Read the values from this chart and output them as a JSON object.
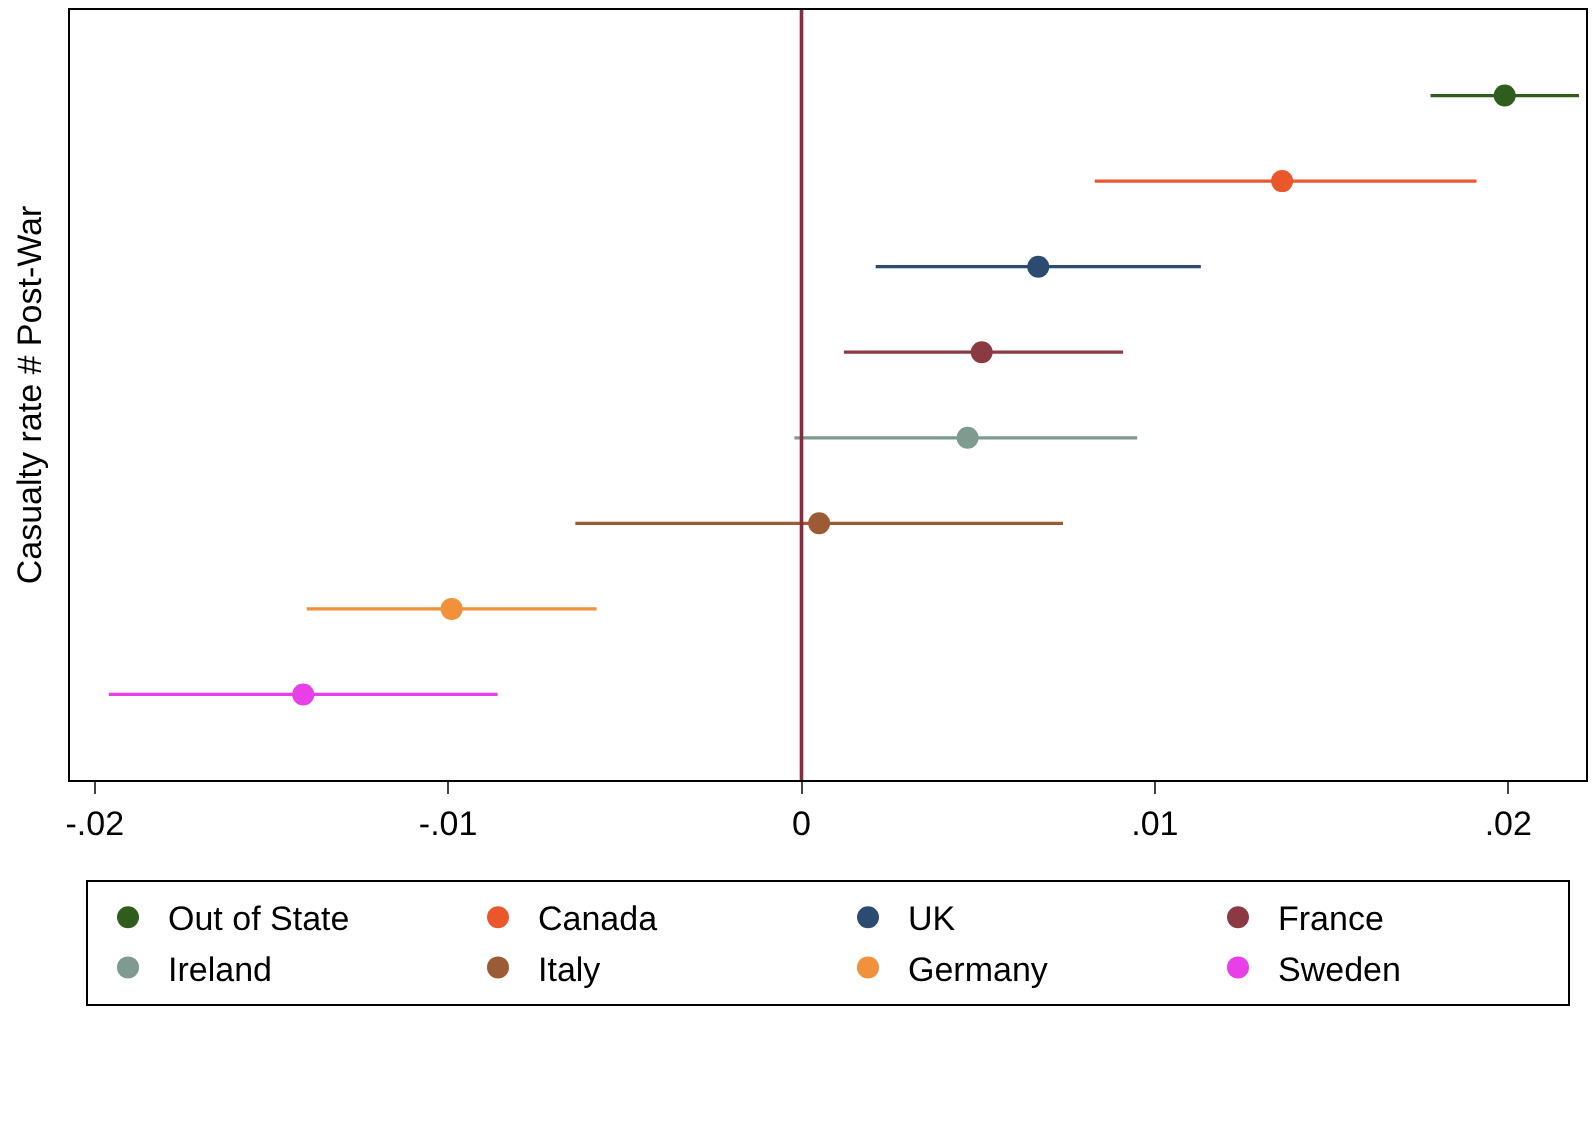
{
  "chart_data": {
    "type": "scatter",
    "orientation": "horizontal",
    "ylabel": "Casualty rate # Post-War",
    "categories": [
      null,
      null,
      null,
      null,
      null,
      null,
      null,
      null
    ],
    "series": [
      {
        "name": "Out of State",
        "color": "#2f5d1c",
        "values": [
          0.0199,
          null,
          null,
          null,
          null,
          null,
          null,
          null
        ],
        "errors": [
          [
            0.0178,
            0.022
          ],
          null,
          null,
          null,
          null,
          null,
          null,
          null
        ]
      },
      {
        "name": "Canada",
        "color": "#e9572b",
        "values": [
          null,
          0.0136,
          null,
          null,
          null,
          null,
          null,
          null
        ],
        "errors": [
          null,
          [
            0.0083,
            0.0191
          ],
          null,
          null,
          null,
          null,
          null,
          null
        ]
      },
      {
        "name": "UK",
        "color": "#2b4b70",
        "values": [
          null,
          null,
          0.0067,
          null,
          null,
          null,
          null,
          null
        ],
        "errors": [
          null,
          null,
          [
            0.0021,
            0.0113
          ],
          null,
          null,
          null,
          null,
          null
        ]
      },
      {
        "name": "France",
        "color": "#8b3a44",
        "values": [
          null,
          null,
          null,
          0.0051,
          null,
          null,
          null,
          null
        ],
        "errors": [
          null,
          null,
          null,
          [
            0.0012,
            0.0091
          ],
          null,
          null,
          null,
          null
        ]
      },
      {
        "name": "Ireland",
        "color": "#7f9a8f",
        "values": [
          null,
          null,
          null,
          null,
          0.0047,
          null,
          null,
          null
        ],
        "errors": [
          null,
          null,
          null,
          null,
          [
            -0.0002,
            0.0095
          ],
          null,
          null,
          null
        ]
      },
      {
        "name": "Italy",
        "color": "#9b5b35",
        "values": [
          null,
          null,
          null,
          null,
          null,
          0.0005,
          null,
          null
        ],
        "errors": [
          null,
          null,
          null,
          null,
          null,
          [
            -0.0064,
            0.0074
          ],
          null,
          null
        ]
      },
      {
        "name": "Germany",
        "color": "#f1913b",
        "values": [
          null,
          null,
          null,
          null,
          null,
          null,
          -0.0099,
          null
        ],
        "errors": [
          null,
          null,
          null,
          null,
          null,
          null,
          [
            -0.014,
            -0.0058
          ],
          null
        ]
      },
      {
        "name": "Sweden",
        "color": "#e93fe9",
        "values": [
          null,
          null,
          null,
          null,
          null,
          null,
          null,
          -0.0141
        ],
        "errors": [
          null,
          null,
          null,
          null,
          null,
          null,
          null,
          [
            -0.0196,
            -0.0086
          ]
        ]
      }
    ],
    "xlim": [
      -0.0207,
      0.0222
    ],
    "xticks": [
      {
        "value": -0.02,
        "label": "-.02"
      },
      {
        "value": -0.01,
        "label": "-.01"
      },
      0,
      {
        "value": 0.01,
        "label": ".01"
      },
      {
        "value": 0.02,
        "label": ".02"
      }
    ],
    "ref_lines": [
      {
        "axis": "x",
        "value": 0,
        "color": "#8b2a3c"
      }
    ],
    "marker": "circle",
    "grid": false,
    "legend": "bottom",
    "tick_labels": "x"
  }
}
